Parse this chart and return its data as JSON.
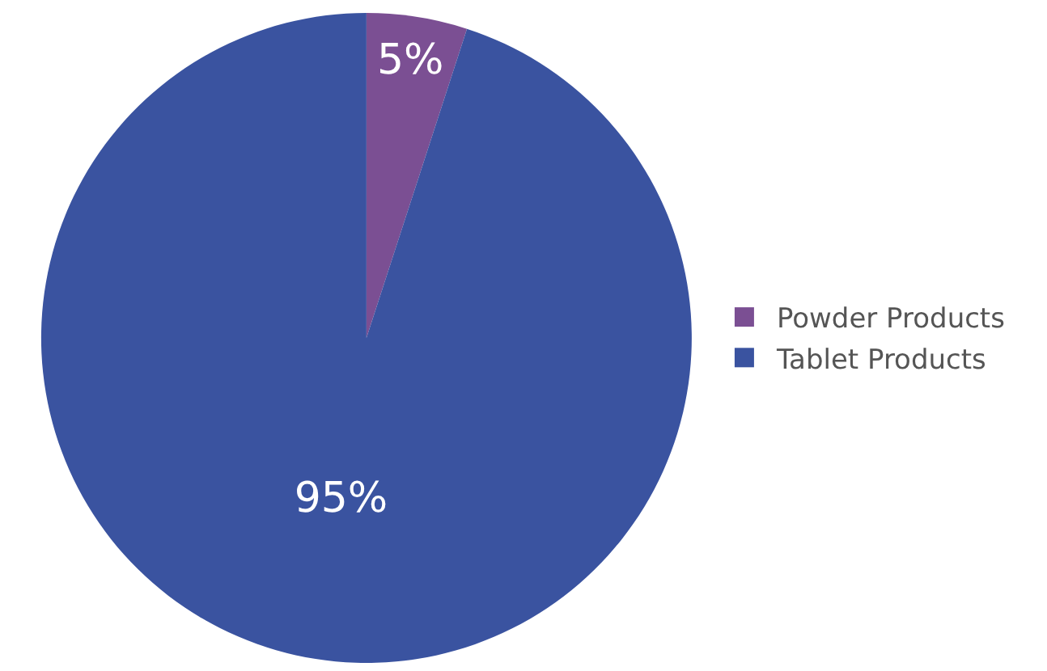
{
  "chart_data": {
    "type": "pie",
    "categories": [
      "Powder Products",
      "Tablet Products"
    ],
    "values": [
      5,
      95
    ],
    "colors": [
      "#7b4f93",
      "#3a53a0"
    ],
    "value_labels": [
      "5%",
      "95%"
    ],
    "legend": "right"
  }
}
